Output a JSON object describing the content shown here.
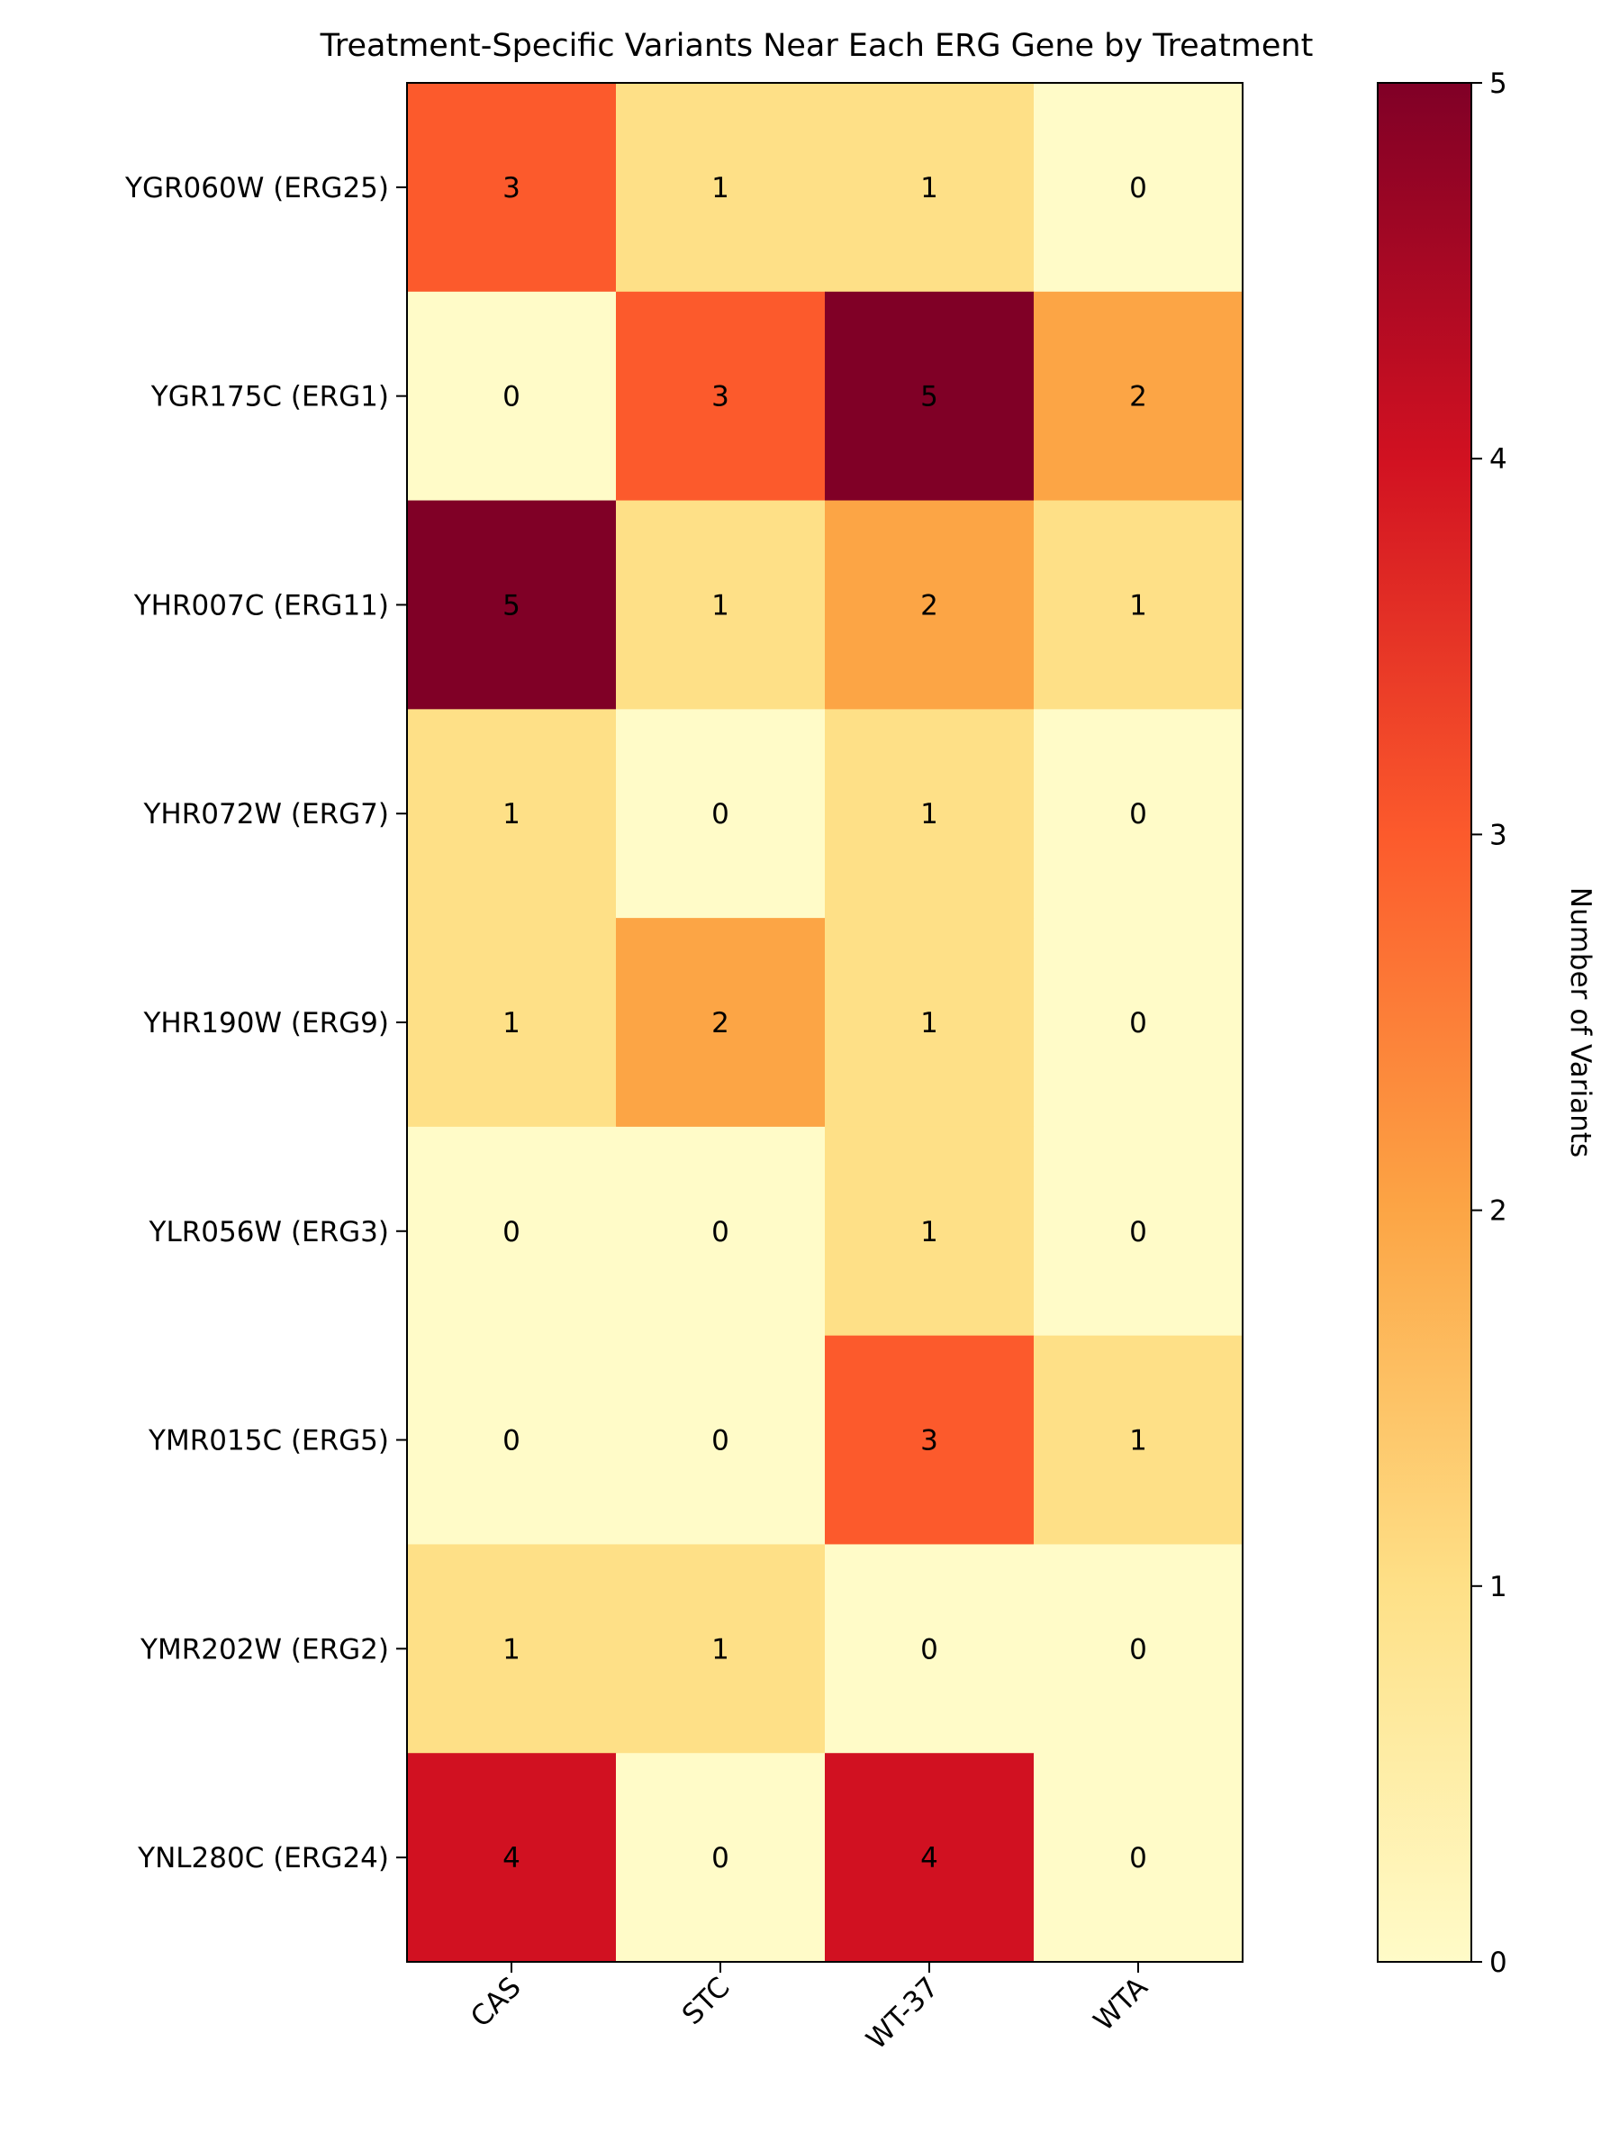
{
  "chart_data": {
    "type": "heatmap",
    "title": "Treatment-Specific Variants Near Each ERG Gene by Treatment",
    "xlabel": "",
    "ylabel": "",
    "columns": [
      "CAS",
      "STC",
      "WT-37",
      "WTA"
    ],
    "rows": [
      "YGR060W (ERG25)",
      "YGR175C (ERG1)",
      "YHR007C (ERG11)",
      "YHR072W (ERG7)",
      "YHR190W (ERG9)",
      "YLR056W (ERG3)",
      "YMR015C (ERG5)",
      "YMR202W (ERG2)",
      "YNL280C (ERG24)"
    ],
    "values": [
      [
        3,
        1,
        1,
        0
      ],
      [
        0,
        3,
        5,
        2
      ],
      [
        5,
        1,
        2,
        1
      ],
      [
        1,
        0,
        1,
        0
      ],
      [
        1,
        2,
        1,
        0
      ],
      [
        0,
        0,
        1,
        0
      ],
      [
        0,
        0,
        3,
        1
      ],
      [
        1,
        1,
        0,
        0
      ],
      [
        4,
        0,
        4,
        0
      ]
    ],
    "colorbar": {
      "label": "Number of Variants",
      "range": [
        0,
        5
      ],
      "ticks": [
        0,
        1,
        2,
        3,
        4,
        5
      ],
      "colormap": "YlOrRd",
      "colors": {
        "0": "#fffbc8",
        "1": "#fee087",
        "2": "#fca545",
        "3": "#fc5a2c",
        "4": "#d11121",
        "5": "#800026"
      }
    },
    "grid": false,
    "data_labels": true
  }
}
